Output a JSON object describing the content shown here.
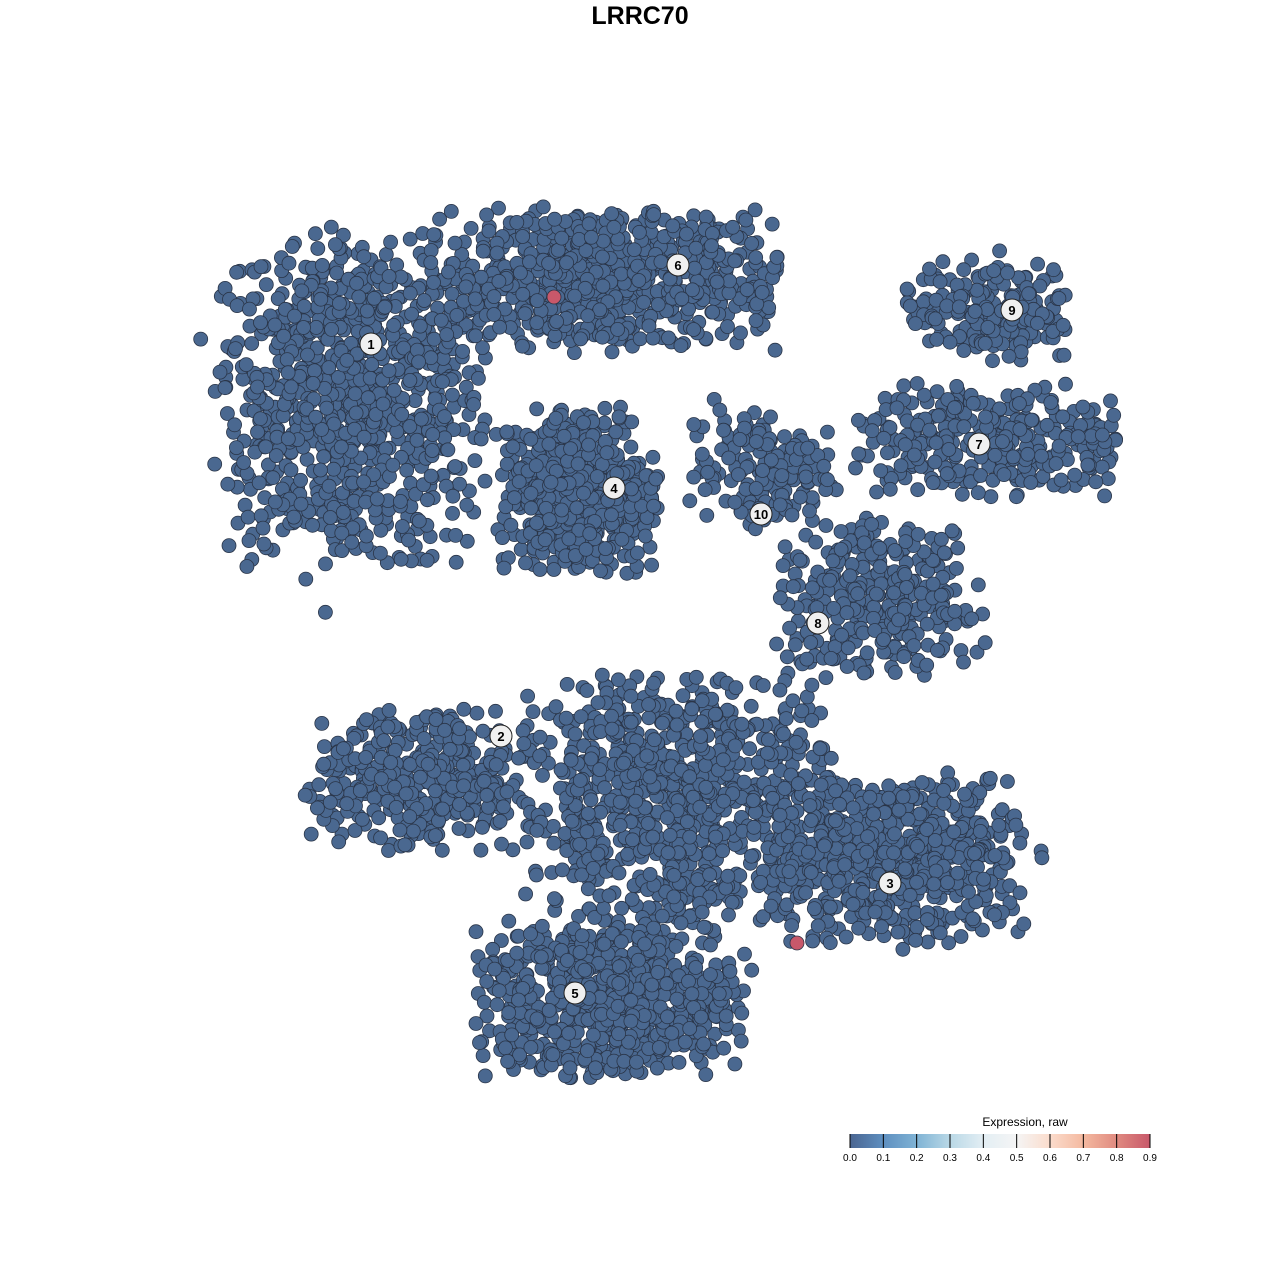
{
  "chart_data": {
    "type": "scatter",
    "title": "LRRC70",
    "xlabel": "",
    "ylabel": "",
    "grid": false,
    "axes_visible": false,
    "point_color_default": "#4a6890",
    "highlight_color": "#c8586a",
    "clusters": [
      {
        "label": "1",
        "center": [
          -29,
          24
        ],
        "spread": [
          13,
          16
        ],
        "n": 900,
        "label_pos": [
          -26.9,
          29.6
        ]
      },
      {
        "label": "6",
        "center": [
          -4,
          36
        ],
        "spread": [
          17,
          7
        ],
        "n": 700,
        "label_pos": [
          3.8,
          37.5
        ]
      },
      {
        "label": "4",
        "center": [
          -6,
          15
        ],
        "spread": [
          7.5,
          8
        ],
        "n": 500,
        "label_pos": [
          -2.6,
          15.2
        ]
      },
      {
        "label": "10",
        "center": [
          12,
          17
        ],
        "spread": [
          7,
          6
        ],
        "n": 160,
        "label_pos": [
          12.1,
          12.6
        ]
      },
      {
        "label": "9",
        "center": [
          35,
          33
        ],
        "spread": [
          8,
          5
        ],
        "n": 200,
        "label_pos": [
          37.2,
          33.0
        ]
      },
      {
        "label": "7",
        "center": [
          35,
          20
        ],
        "spread": [
          13,
          5.5
        ],
        "n": 320,
        "label_pos": [
          33.9,
          19.6
        ]
      },
      {
        "label": "8",
        "center": [
          24,
          4
        ],
        "spread": [
          10,
          7.5
        ],
        "n": 320,
        "label_pos": [
          17.8,
          1.7
        ]
      },
      {
        "label": "2",
        "center": [
          -22,
          -14
        ],
        "spread": [
          11,
          7
        ],
        "n": 380,
        "label_pos": [
          -13.9,
          -9.6
        ]
      },
      {
        "label": "",
        "center": [
          4,
          -16
        ],
        "spread": [
          15,
          12
        ],
        "n": 900,
        "label_pos": null
      },
      {
        "label": "3",
        "center": [
          26,
          -22
        ],
        "spread": [
          12,
          8
        ],
        "n": 600,
        "label_pos": [
          25.0,
          -24.3
        ]
      },
      {
        "label": "5",
        "center": [
          -3,
          -36
        ],
        "spread": [
          13,
          7.5
        ],
        "n": 700,
        "label_pos": [
          -6.5,
          -35.3
        ]
      }
    ],
    "highlighted_points": [
      {
        "x": -8.6,
        "y": 34.3,
        "value": 0.9
      },
      {
        "x": 15.7,
        "y": -30.3,
        "value": 0.9
      }
    ],
    "default_value": 0.0,
    "colorbar": {
      "title": "Expression, raw",
      "range": [
        0.0,
        0.9
      ],
      "ticks": [
        "0.0",
        "0.1",
        "0.2",
        "0.3",
        "0.4",
        "0.5",
        "0.6",
        "0.7",
        "0.8",
        "0.9"
      ],
      "colors": [
        "#4a6591",
        "#5e8fc0",
        "#7fb3d5",
        "#b9d8e6",
        "#e3eef4",
        "#f5f5f5",
        "#fbdccc",
        "#f4b9a0",
        "#e08a80",
        "#c8586a"
      ],
      "placement": "bottom-right"
    }
  }
}
